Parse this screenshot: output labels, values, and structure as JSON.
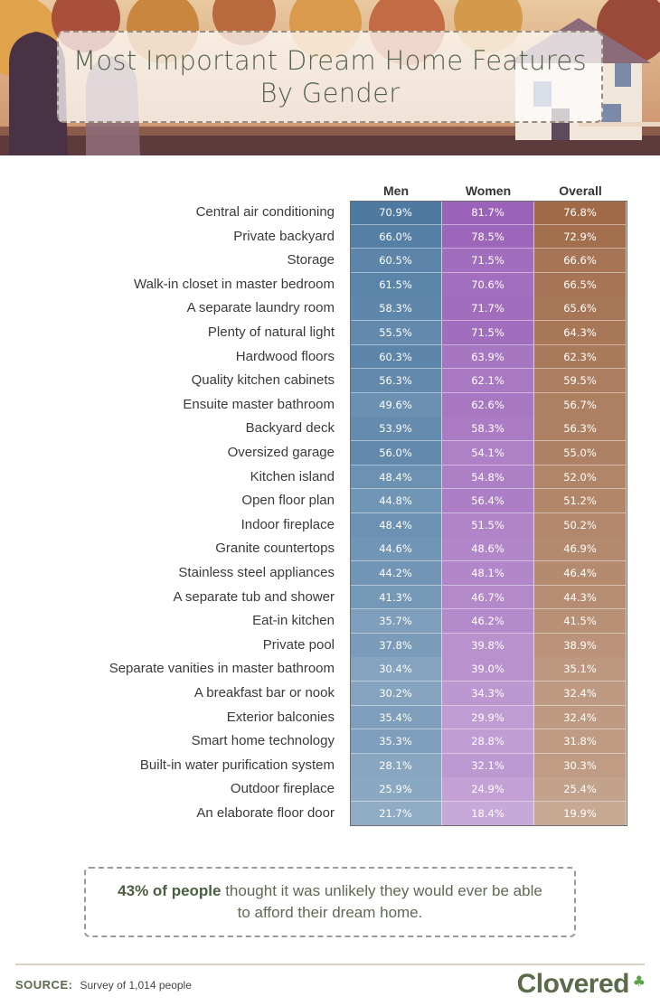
{
  "title": {
    "line1": "Most Important Dream Home Features",
    "line2": "By Gender"
  },
  "chart_data": {
    "type": "table",
    "columns": [
      "Men",
      "Women",
      "Overall"
    ],
    "rows": [
      {
        "feature": "Central air conditioning",
        "men": "70.9%",
        "women": "81.7%",
        "overall": "76.8%"
      },
      {
        "feature": "Private backyard",
        "men": "66.0%",
        "women": "78.5%",
        "overall": "72.9%"
      },
      {
        "feature": "Storage",
        "men": "60.5%",
        "women": "71.5%",
        "overall": "66.6%"
      },
      {
        "feature": "Walk-in closet in master bedroom",
        "men": "61.5%",
        "women": "70.6%",
        "overall": "66.5%"
      },
      {
        "feature": "A separate laundry room",
        "men": "58.3%",
        "women": "71.7%",
        "overall": "65.6%"
      },
      {
        "feature": "Plenty of natural light",
        "men": "55.5%",
        "women": "71.5%",
        "overall": "64.3%"
      },
      {
        "feature": "Hardwood floors",
        "men": "60.3%",
        "women": "63.9%",
        "overall": "62.3%"
      },
      {
        "feature": "Quality kitchen cabinets",
        "men": "56.3%",
        "women": "62.1%",
        "overall": "59.5%"
      },
      {
        "feature": "Ensuite master bathroom",
        "men": "49.6%",
        "women": "62.6%",
        "overall": "56.7%"
      },
      {
        "feature": "Backyard deck",
        "men": "53.9%",
        "women": "58.3%",
        "overall": "56.3%"
      },
      {
        "feature": "Oversized garage",
        "men": "56.0%",
        "women": "54.1%",
        "overall": "55.0%"
      },
      {
        "feature": "Kitchen island",
        "men": "48.4%",
        "women": "54.8%",
        "overall": "52.0%"
      },
      {
        "feature": "Open floor plan",
        "men": "44.8%",
        "women": "56.4%",
        "overall": "51.2%"
      },
      {
        "feature": "Indoor fireplace",
        "men": "48.4%",
        "women": "51.5%",
        "overall": "50.2%"
      },
      {
        "feature": "Granite countertops",
        "men": "44.6%",
        "women": "48.6%",
        "overall": "46.9%"
      },
      {
        "feature": "Stainless steel appliances",
        "men": "44.2%",
        "women": "48.1%",
        "overall": "46.4%"
      },
      {
        "feature": "A separate tub and shower",
        "men": "41.3%",
        "women": "46.7%",
        "overall": "44.3%"
      },
      {
        "feature": "Eat-in kitchen",
        "men": "35.7%",
        "women": "46.2%",
        "overall": "41.5%"
      },
      {
        "feature": "Private pool",
        "men": "37.8%",
        "women": "39.8%",
        "overall": "38.9%"
      },
      {
        "feature": "Separate vanities in master bathroom",
        "men": "30.4%",
        "women": "39.0%",
        "overall": "35.1%"
      },
      {
        "feature": "A breakfast bar or nook",
        "men": "30.2%",
        "women": "34.3%",
        "overall": "32.4%"
      },
      {
        "feature": "Exterior balconies",
        "men": "35.4%",
        "women": "29.9%",
        "overall": "32.4%"
      },
      {
        "feature": "Smart home technology",
        "men": "35.3%",
        "women": "28.8%",
        "overall": "31.8%"
      },
      {
        "feature": "Built-in water purification system",
        "men": "28.1%",
        "women": "32.1%",
        "overall": "30.3%"
      },
      {
        "feature": "Outdoor fireplace",
        "men": "25.9%",
        "women": "24.9%",
        "overall": "25.4%"
      },
      {
        "feature": "An elaborate floor door",
        "men": "21.7%",
        "women": "18.4%",
        "overall": "19.9%"
      }
    ],
    "colors": {
      "men": "#3f6f9a",
      "women": "#9a62b8",
      "overall": "#9c6440"
    }
  },
  "callout": {
    "highlight": "43% of people",
    "line1_rest": " thought it was unlikely they would ever be able",
    "line2": "to afford their dream home."
  },
  "footer": {
    "source_label": "SOURCE:",
    "source_text": "Survey of 1,014 people",
    "brand": "Clovered"
  }
}
